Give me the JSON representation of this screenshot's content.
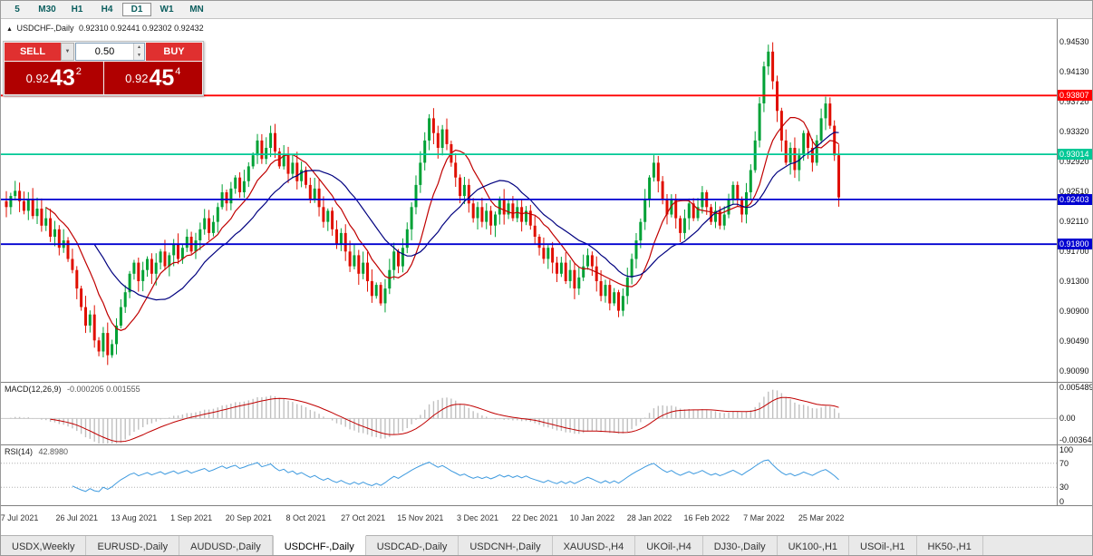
{
  "toolbar": {
    "periods": [
      {
        "label": "5",
        "active": false
      },
      {
        "label": "M30",
        "active": false
      },
      {
        "label": "H1",
        "active": false
      },
      {
        "label": "H4",
        "active": false
      },
      {
        "label": "D1",
        "active": true
      },
      {
        "label": "W1",
        "active": false
      },
      {
        "label": "MN",
        "active": false
      }
    ]
  },
  "chart": {
    "title": {
      "marker": "▲",
      "symbol": "USDCHF-,Daily",
      "ohlc": "0.92310 0.92441 0.92302 0.92432"
    },
    "trade": {
      "sell": "SELL",
      "buy": "BUY",
      "volume": "0.50",
      "bid_prefix": "0.92",
      "bid_big": "43",
      "bid_sup": "2",
      "ask_prefix": "0.92",
      "ask_big": "45",
      "ask_sup": "4"
    }
  },
  "indicators": {
    "macd": {
      "label": "MACD(12,26,9)",
      "values": "-0.000205 0.001555",
      "axis": [
        "0.005489",
        "0.00",
        "-0.00364"
      ]
    },
    "rsi": {
      "label": "RSI(14)",
      "value": "42.8980",
      "axis": [
        "100",
        "70",
        "30",
        "0"
      ],
      "levels": [
        70,
        30
      ]
    }
  },
  "tabs": [
    {
      "label": "USDX,Weekly",
      "active": false
    },
    {
      "label": "EURUSD-,Daily",
      "active": false
    },
    {
      "label": "AUDUSD-,Daily",
      "active": false
    },
    {
      "label": "USDCHF-,Daily",
      "active": true
    },
    {
      "label": "USDCAD-,Daily",
      "active": false
    },
    {
      "label": "USDCNH-,Daily",
      "active": false
    },
    {
      "label": "XAUUSD-,H4",
      "active": false
    },
    {
      "label": "UKOil-,H4",
      "active": false
    },
    {
      "label": "DJ30-,Daily",
      "active": false
    },
    {
      "label": "UK100-,H1",
      "active": false
    },
    {
      "label": "USOil-,H1",
      "active": false
    },
    {
      "label": "HK50-,H1",
      "active": false
    }
  ],
  "chart_data": {
    "type": "candlestick",
    "symbol": "USDCHF",
    "timeframe": "Daily",
    "ylim": [
      0.8994,
      0.9484
    ],
    "y_ticks": [
      "0.94530",
      "0.94130",
      "0.93720",
      "0.93320",
      "0.92920",
      "0.92510",
      "0.92110",
      "0.91700",
      "0.91300",
      "0.90900",
      "0.90490",
      "0.90090"
    ],
    "x_labels": [
      "7 Jul 2021",
      "26 Jul 2021",
      "13 Aug 2021",
      "1 Sep 2021",
      "20 Sep 2021",
      "8 Oct 2021",
      "27 Oct 2021",
      "15 Nov 2021",
      "3 Dec 2021",
      "22 Dec 2021",
      "10 Jan 2022",
      "28 Jan 2022",
      "16 Feb 2022",
      "7 Mar 2022",
      "25 Mar 2022"
    ],
    "label_indices": [
      3,
      16,
      29,
      42,
      55,
      68,
      81,
      94,
      107,
      120,
      133,
      146,
      159,
      172,
      185
    ],
    "closes": [
      0.923,
      0.9245,
      0.9252,
      0.9238,
      0.9225,
      0.924,
      0.9218,
      0.9228,
      0.9205,
      0.9215,
      0.919,
      0.92,
      0.9175,
      0.9185,
      0.916,
      0.9145,
      0.912,
      0.9095,
      0.907,
      0.9085,
      0.905,
      0.9035,
      0.906,
      0.903,
      0.9045,
      0.907,
      0.9095,
      0.9115,
      0.914,
      0.9155,
      0.913,
      0.9145,
      0.916,
      0.914,
      0.9155,
      0.917,
      0.915,
      0.9165,
      0.918,
      0.916,
      0.9175,
      0.919,
      0.917,
      0.9185,
      0.92,
      0.9215,
      0.9195,
      0.921,
      0.923,
      0.925,
      0.9235,
      0.9255,
      0.927,
      0.925,
      0.9265,
      0.9285,
      0.93,
      0.932,
      0.9295,
      0.931,
      0.933,
      0.9305,
      0.9285,
      0.93,
      0.9275,
      0.929,
      0.9265,
      0.928,
      0.926,
      0.924,
      0.9255,
      0.923,
      0.921,
      0.9225,
      0.92,
      0.918,
      0.9195,
      0.917,
      0.915,
      0.9165,
      0.914,
      0.9155,
      0.913,
      0.911,
      0.9125,
      0.91,
      0.912,
      0.9145,
      0.917,
      0.915,
      0.9175,
      0.92,
      0.923,
      0.926,
      0.929,
      0.932,
      0.935,
      0.933,
      0.931,
      0.9335,
      0.9315,
      0.929,
      0.927,
      0.9245,
      0.926,
      0.9235,
      0.9215,
      0.923,
      0.921,
      0.9225,
      0.9205,
      0.922,
      0.924,
      0.922,
      0.9235,
      0.9215,
      0.923,
      0.921,
      0.9225,
      0.9205,
      0.919,
      0.9175,
      0.916,
      0.9175,
      0.9155,
      0.914,
      0.9155,
      0.913,
      0.9145,
      0.912,
      0.9135,
      0.915,
      0.9165,
      0.915,
      0.913,
      0.911,
      0.9125,
      0.91,
      0.9115,
      0.909,
      0.911,
      0.9135,
      0.916,
      0.9185,
      0.921,
      0.924,
      0.927,
      0.929,
      0.9265,
      0.924,
      0.922,
      0.924,
      0.9215,
      0.9195,
      0.9215,
      0.9235,
      0.9215,
      0.923,
      0.925,
      0.923,
      0.921,
      0.9225,
      0.9205,
      0.922,
      0.924,
      0.926,
      0.924,
      0.922,
      0.925,
      0.928,
      0.932,
      0.937,
      0.942,
      0.944,
      0.94,
      0.936,
      0.932,
      0.929,
      0.931,
      0.928,
      0.93,
      0.933,
      0.931,
      0.929,
      0.932,
      0.935,
      0.937,
      0.934,
      0.93,
      0.92432
    ],
    "hlines": [
      {
        "value": 0.93807,
        "label": "0.93807",
        "color": "#ff0000"
      },
      {
        "value": 0.93014,
        "label": "0.93014",
        "color": "#00c896"
      },
      {
        "value": 0.92403,
        "label": "0.92403",
        "color": "#0000d0"
      },
      {
        "value": 0.918,
        "label": "0.91800",
        "color": "#0000d0"
      }
    ],
    "ma_periods": [
      10,
      21
    ],
    "macd_ylim": [
      -0.0045,
      0.0062
    ],
    "colors": {
      "up": "#00a135",
      "down": "#e00f00",
      "ma_fast": "#c00000",
      "ma_slow": "#00007f",
      "macd_hist": "#c0c0c0",
      "macd_signal": "#c00000",
      "rsi_line": "#3e9adf"
    }
  }
}
